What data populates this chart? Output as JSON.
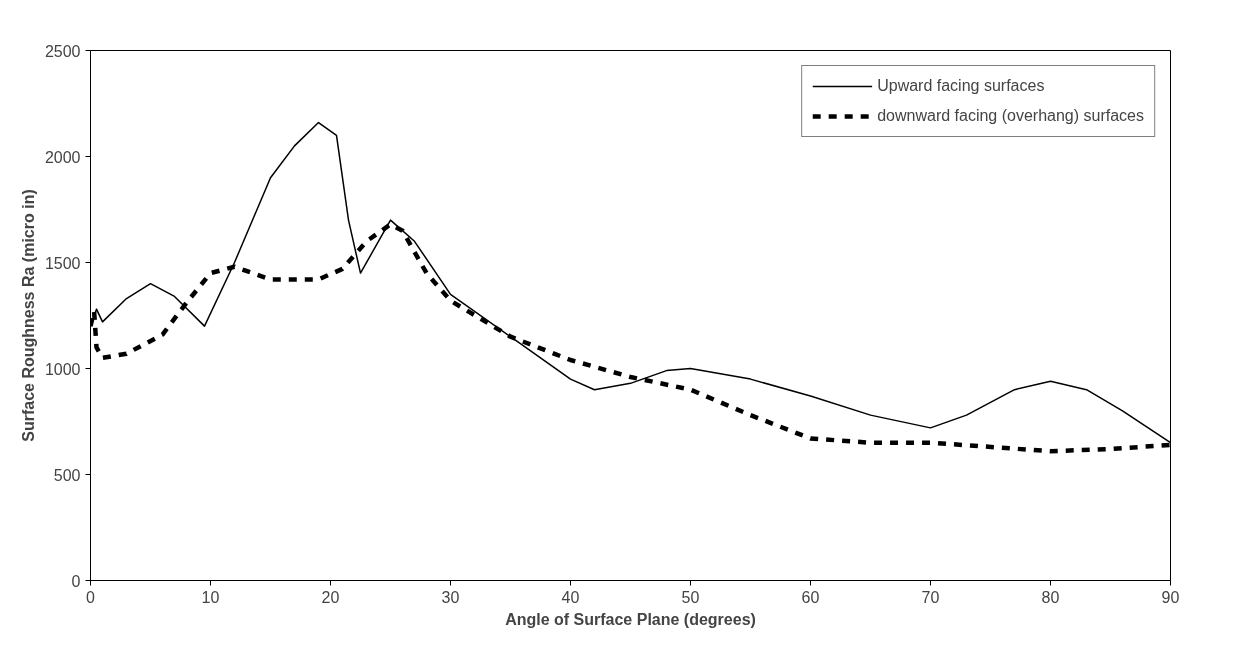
{
  "chart_data": {
    "type": "line",
    "xlabel": "Angle of Surface Plane (degrees)",
    "ylabel": "Surface Roughness Ra (micro in)",
    "xlim": [
      0,
      90
    ],
    "ylim": [
      0,
      2500
    ],
    "xticks": [
      0,
      10,
      20,
      30,
      40,
      50,
      60,
      70,
      80,
      90
    ],
    "yticks": [
      0,
      500,
      1000,
      1500,
      2000,
      2500
    ],
    "grid": false,
    "legend": "top right",
    "marker": "none",
    "series": [
      {
        "name": "Upward facing surfaces",
        "color": "#000000",
        "line_style": "solid",
        "x": [
          0,
          0.5,
          1,
          3,
          5,
          7,
          9.5,
          12,
          15,
          17,
          19,
          20.5,
          21.5,
          22.5,
          25,
          27,
          30,
          35,
          40,
          42,
          45,
          48,
          50,
          55,
          60,
          65,
          70,
          73,
          77,
          80,
          83,
          86,
          90
        ],
        "values": [
          1200,
          1280,
          1220,
          1330,
          1400,
          1340,
          1200,
          1500,
          1900,
          2050,
          2160,
          2100,
          1700,
          1450,
          1700,
          1600,
          1350,
          1150,
          950,
          900,
          930,
          990,
          1000,
          950,
          870,
          780,
          720,
          780,
          900,
          940,
          900,
          800,
          650
        ]
      },
      {
        "name": "downward facing (overhang) surfaces",
        "color": "#000000",
        "line_style": "dashed",
        "x": [
          0,
          0.3,
          0.5,
          1,
          3,
          6,
          8,
          10,
          12,
          15,
          19,
          21,
          23,
          25,
          26,
          28,
          30,
          35,
          40,
          45,
          50,
          55,
          60,
          65,
          70,
          80,
          85,
          90
        ],
        "values": [
          1200,
          1270,
          1100,
          1050,
          1070,
          1160,
          1310,
          1450,
          1480,
          1420,
          1420,
          1470,
          1600,
          1680,
          1650,
          1450,
          1320,
          1150,
          1040,
          960,
          900,
          780,
          670,
          650,
          650,
          610,
          620,
          640
        ]
      }
    ]
  }
}
